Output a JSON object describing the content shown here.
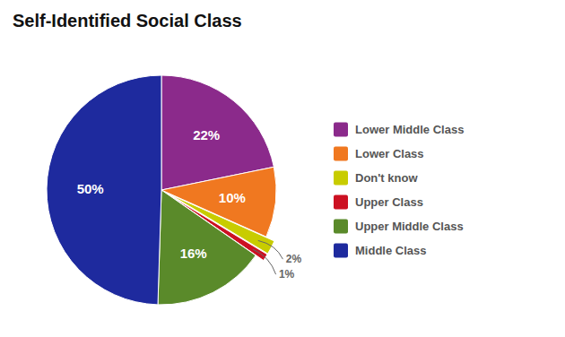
{
  "chart_data": {
    "type": "pie",
    "title": "Self-Identified Social Class",
    "categories": [
      "Lower Middle Class",
      "Lower Class",
      "Don't know",
      "Upper Class",
      "Upper Middle Class",
      "Middle Class"
    ],
    "values": [
      22,
      10,
      2,
      1,
      16,
      50
    ],
    "value_labels": [
      "22%",
      "10%",
      "2%",
      "1%",
      "16%",
      "50%"
    ],
    "colors": [
      "#8b2a8b",
      "#f07820",
      "#c8cc00",
      "#cc1122",
      "#5a8a2a",
      "#1e2a9e"
    ],
    "data_labels": true,
    "legend": "right"
  }
}
